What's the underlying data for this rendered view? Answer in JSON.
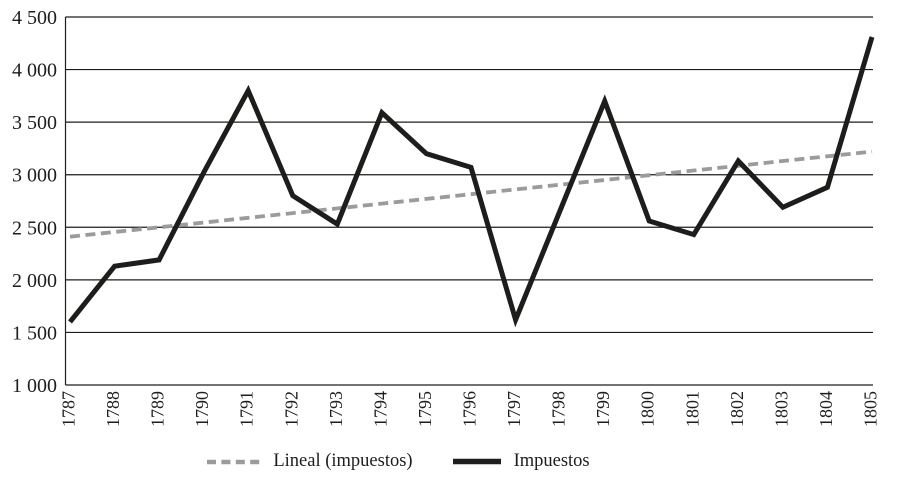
{
  "chart_data": {
    "type": "line",
    "title": "",
    "xlabel": "",
    "ylabel": "",
    "x_labels": [
      "1787",
      "1788",
      "1789",
      "1790",
      "1791",
      "1792",
      "1793",
      "1794",
      "1795",
      "1796",
      "1797",
      "1798",
      "1799",
      "1800",
      "1801",
      "1802",
      "1803",
      "1804",
      "1805"
    ],
    "series": [
      {
        "name": "Lineal (impuestos)",
        "style": "dashed",
        "color": "#9b9b9b",
        "values": [
          2410,
          2455,
          2500,
          2545,
          2590,
          2635,
          2680,
          2725,
          2770,
          2815,
          2860,
          2905,
          2950,
          2995,
          3040,
          3085,
          3130,
          3175,
          3220
        ]
      },
      {
        "name": "Impuestos",
        "style": "solid",
        "color": "#1d1d1b",
        "values": [
          1600,
          2130,
          2190,
          3020,
          3800,
          2800,
          2530,
          3590,
          3200,
          3070,
          1620,
          2660,
          3700,
          2560,
          2430,
          3130,
          2690,
          2880,
          4310
        ]
      }
    ],
    "ylim": [
      1000,
      4500
    ],
    "y_tick_step": 500,
    "y_tick_labels": [
      "1 000",
      "1 500",
      "2 000",
      "2 500",
      "3 000",
      "3 500",
      "4 000",
      "4 500"
    ],
    "grid": "horizontal",
    "grid_color": "#1d1d1b",
    "background": "#ffffff",
    "legend_position": "bottom"
  }
}
